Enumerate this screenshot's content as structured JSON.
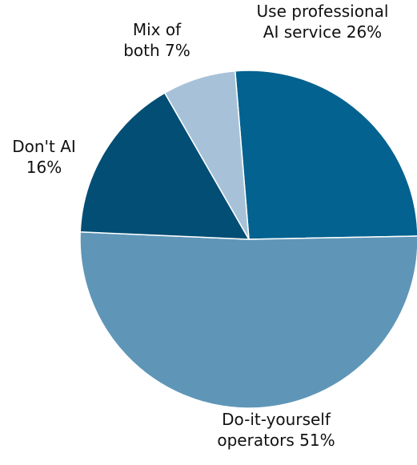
{
  "chart_data": {
    "type": "pie",
    "slices": [
      {
        "label_lines": [
          "Use professional",
          "AI service 26%"
        ],
        "value": 26,
        "color": "#03628f"
      },
      {
        "label_lines": [
          "Do-it-yourself",
          "operators 51%"
        ],
        "value": 51,
        "color": "#5f96b8"
      },
      {
        "label_lines": [
          "Don't AI",
          "16%"
        ],
        "value": 16,
        "color": "#024e75"
      },
      {
        "label_lines": [
          "Mix of",
          "both 7%"
        ],
        "value": 7,
        "color": "#a7c2d8"
      }
    ]
  }
}
